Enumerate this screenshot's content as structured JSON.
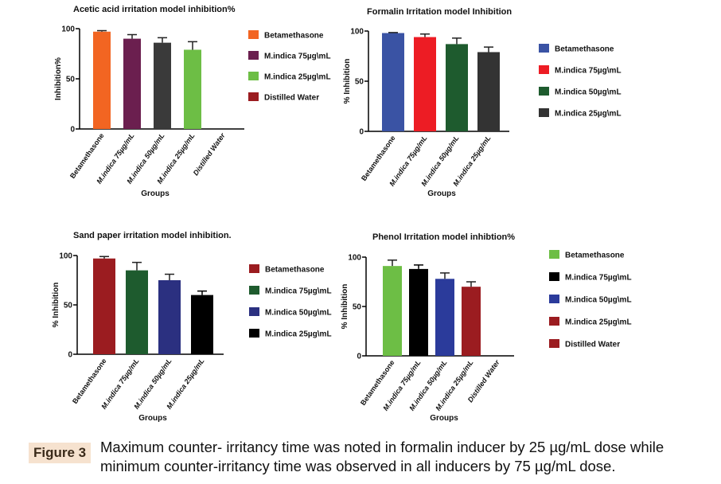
{
  "chart_data": [
    {
      "type": "bar",
      "title": "Acetic acid irritation model inhibition%",
      "ylabel": "Inhibition%",
      "xlabel": "Groups",
      "categories": [
        "Betamethasone",
        "M.indica 75µg/mL",
        "M.indica 50µg/mL",
        "M.indica 25µg/mL",
        "Distilled Water"
      ],
      "values": [
        97,
        90,
        86,
        79,
        0
      ],
      "errors": [
        1,
        4,
        5,
        8,
        null
      ],
      "colors": [
        "#f26522",
        "#6b1f4f",
        "#3a3a3a",
        "#6dbe45",
        "#9b1c20"
      ],
      "legend": [
        {
          "label": "Betamethasone",
          "color": "#f26522"
        },
        {
          "label": "M.indica 75µg\\mL",
          "color": "#6b1f4f"
        },
        {
          "label": "M.indica 25µg\\mL",
          "color": "#6dbe45"
        },
        {
          "label": "Distilled Water",
          "color": "#9b1c20"
        }
      ],
      "ylim": [
        0,
        100
      ],
      "yticks": [
        0,
        50,
        100
      ]
    },
    {
      "type": "bar",
      "title": "Formalin Irritation model Inhibition",
      "ylabel": "% Inhibition",
      "xlabel": "Groups",
      "categories": [
        "Betamethasone",
        "M.indica 75µg/mL",
        "M.indica 50µg/mL",
        "M.indica 25µg/mL"
      ],
      "values": [
        98,
        94,
        87,
        79
      ],
      "errors": [
        0.5,
        3,
        6,
        5
      ],
      "colors": [
        "#3a53a4",
        "#ed1c24",
        "#1e5b2e",
        "#333333"
      ],
      "legend": [
        {
          "label": "Betamethasone",
          "color": "#3a53a4"
        },
        {
          "label": "M.indica 75µg\\mL",
          "color": "#ed1c24"
        },
        {
          "label": "M.indica 50µg\\mL",
          "color": "#1e5b2e"
        },
        {
          "label": "M.indica 25µg\\mL",
          "color": "#333333"
        }
      ],
      "ylim": [
        0,
        100
      ],
      "yticks": [
        0,
        50,
        100
      ]
    },
    {
      "type": "bar",
      "title": "Sand paper irritation model inhibition.",
      "ylabel": "% Inhibition",
      "xlabel": "Groups",
      "categories": [
        "Betamethasone",
        "M.indica 75µg/mL",
        "M.indica 50µg/mL",
        "M.indica 25µg/mL"
      ],
      "values": [
        97,
        85,
        75,
        60
      ],
      "errors": [
        2,
        8,
        6,
        4
      ],
      "colors": [
        "#9b1c20",
        "#1e5b2e",
        "#2b3080",
        "#000000"
      ],
      "legend": [
        {
          "label": "Betamethasone",
          "color": "#9b1c20"
        },
        {
          "label": "M.indica 75µg\\mL",
          "color": "#1e5b2e"
        },
        {
          "label": "M.indica 50µg\\mL",
          "color": "#2b3080"
        },
        {
          "label": "M.indica 25µg\\mL",
          "color": "#000000"
        }
      ],
      "ylim": [
        0,
        100
      ],
      "yticks": [
        0,
        50,
        100
      ]
    },
    {
      "type": "bar",
      "title": "Phenol Irritation model inhibtion%",
      "ylabel": "% Inhibition",
      "xlabel": "Groups",
      "categories": [
        "Betamethasone",
        "M.indica 75µg/mL",
        "M.indica 50µg/mL",
        "M.indica 25µg/mL",
        "Distilled Water"
      ],
      "values": [
        91,
        88,
        78,
        70,
        0
      ],
      "errors": [
        6,
        4,
        6,
        5,
        null
      ],
      "colors": [
        "#6dbe45",
        "#000000",
        "#2b3b9b",
        "#9b1c20",
        "#9b1c20"
      ],
      "legend": [
        {
          "label": "Betamethasone",
          "color": "#6dbe45"
        },
        {
          "label": "M.indica 75µg\\mL",
          "color": "#000000"
        },
        {
          "label": "M.indica 50µg\\mL",
          "color": "#2b3b9b"
        },
        {
          "label": "M.indica 25µg\\mL",
          "color": "#9b1c20"
        },
        {
          "label": "Distilled Water",
          "color": "#9b1c20"
        }
      ],
      "ylim": [
        0,
        100
      ],
      "yticks": [
        0,
        50,
        100
      ]
    }
  ],
  "caption": {
    "label": "Figure 3",
    "text": "Maximum counter- irritancy time was noted in formalin inducer by 25 µg/mL dose while minimum counter-irritancy time was observed in all inducers by 75 µg/mL dose."
  }
}
